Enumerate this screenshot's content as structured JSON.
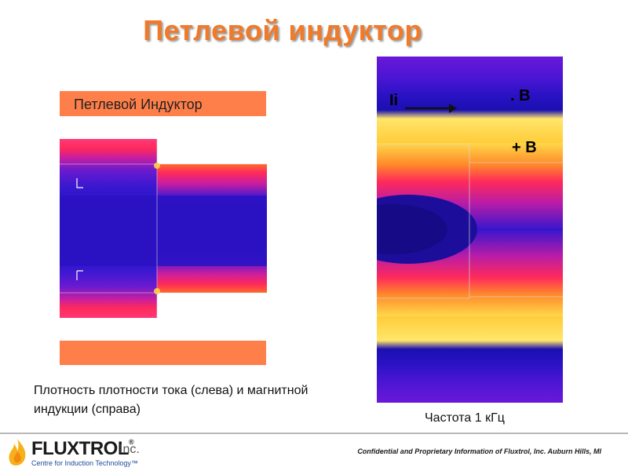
{
  "title": "Петлевой индуктор",
  "left_panel": {
    "top_bar_label": "Петлевой Индуктор"
  },
  "right_panel": {
    "current_label": "Ii",
    "minus_b_label": ". B",
    "plus_b_label": "+ B"
  },
  "captions": {
    "left": "Плотность плотности тока (слева) и магнитной индукции (справа)",
    "right": "Частота 1 кГц"
  },
  "footer": {
    "logo_word": "FLUXTROL",
    "logo_reg": "®",
    "logo_inc": "Inc.",
    "logo_tagline": "Centre for Induction Technology™",
    "confidential": "Confidential and Proprietary Information of Fluxtrol, Inc. Auburn Hills, MI"
  },
  "colors": {
    "accent_orange": "#f07a2a",
    "bar_orange": "#ff7f4a",
    "field_low": "#2a14c8",
    "field_high": "#ffd84a",
    "field_mid": "#ff2a5a"
  }
}
